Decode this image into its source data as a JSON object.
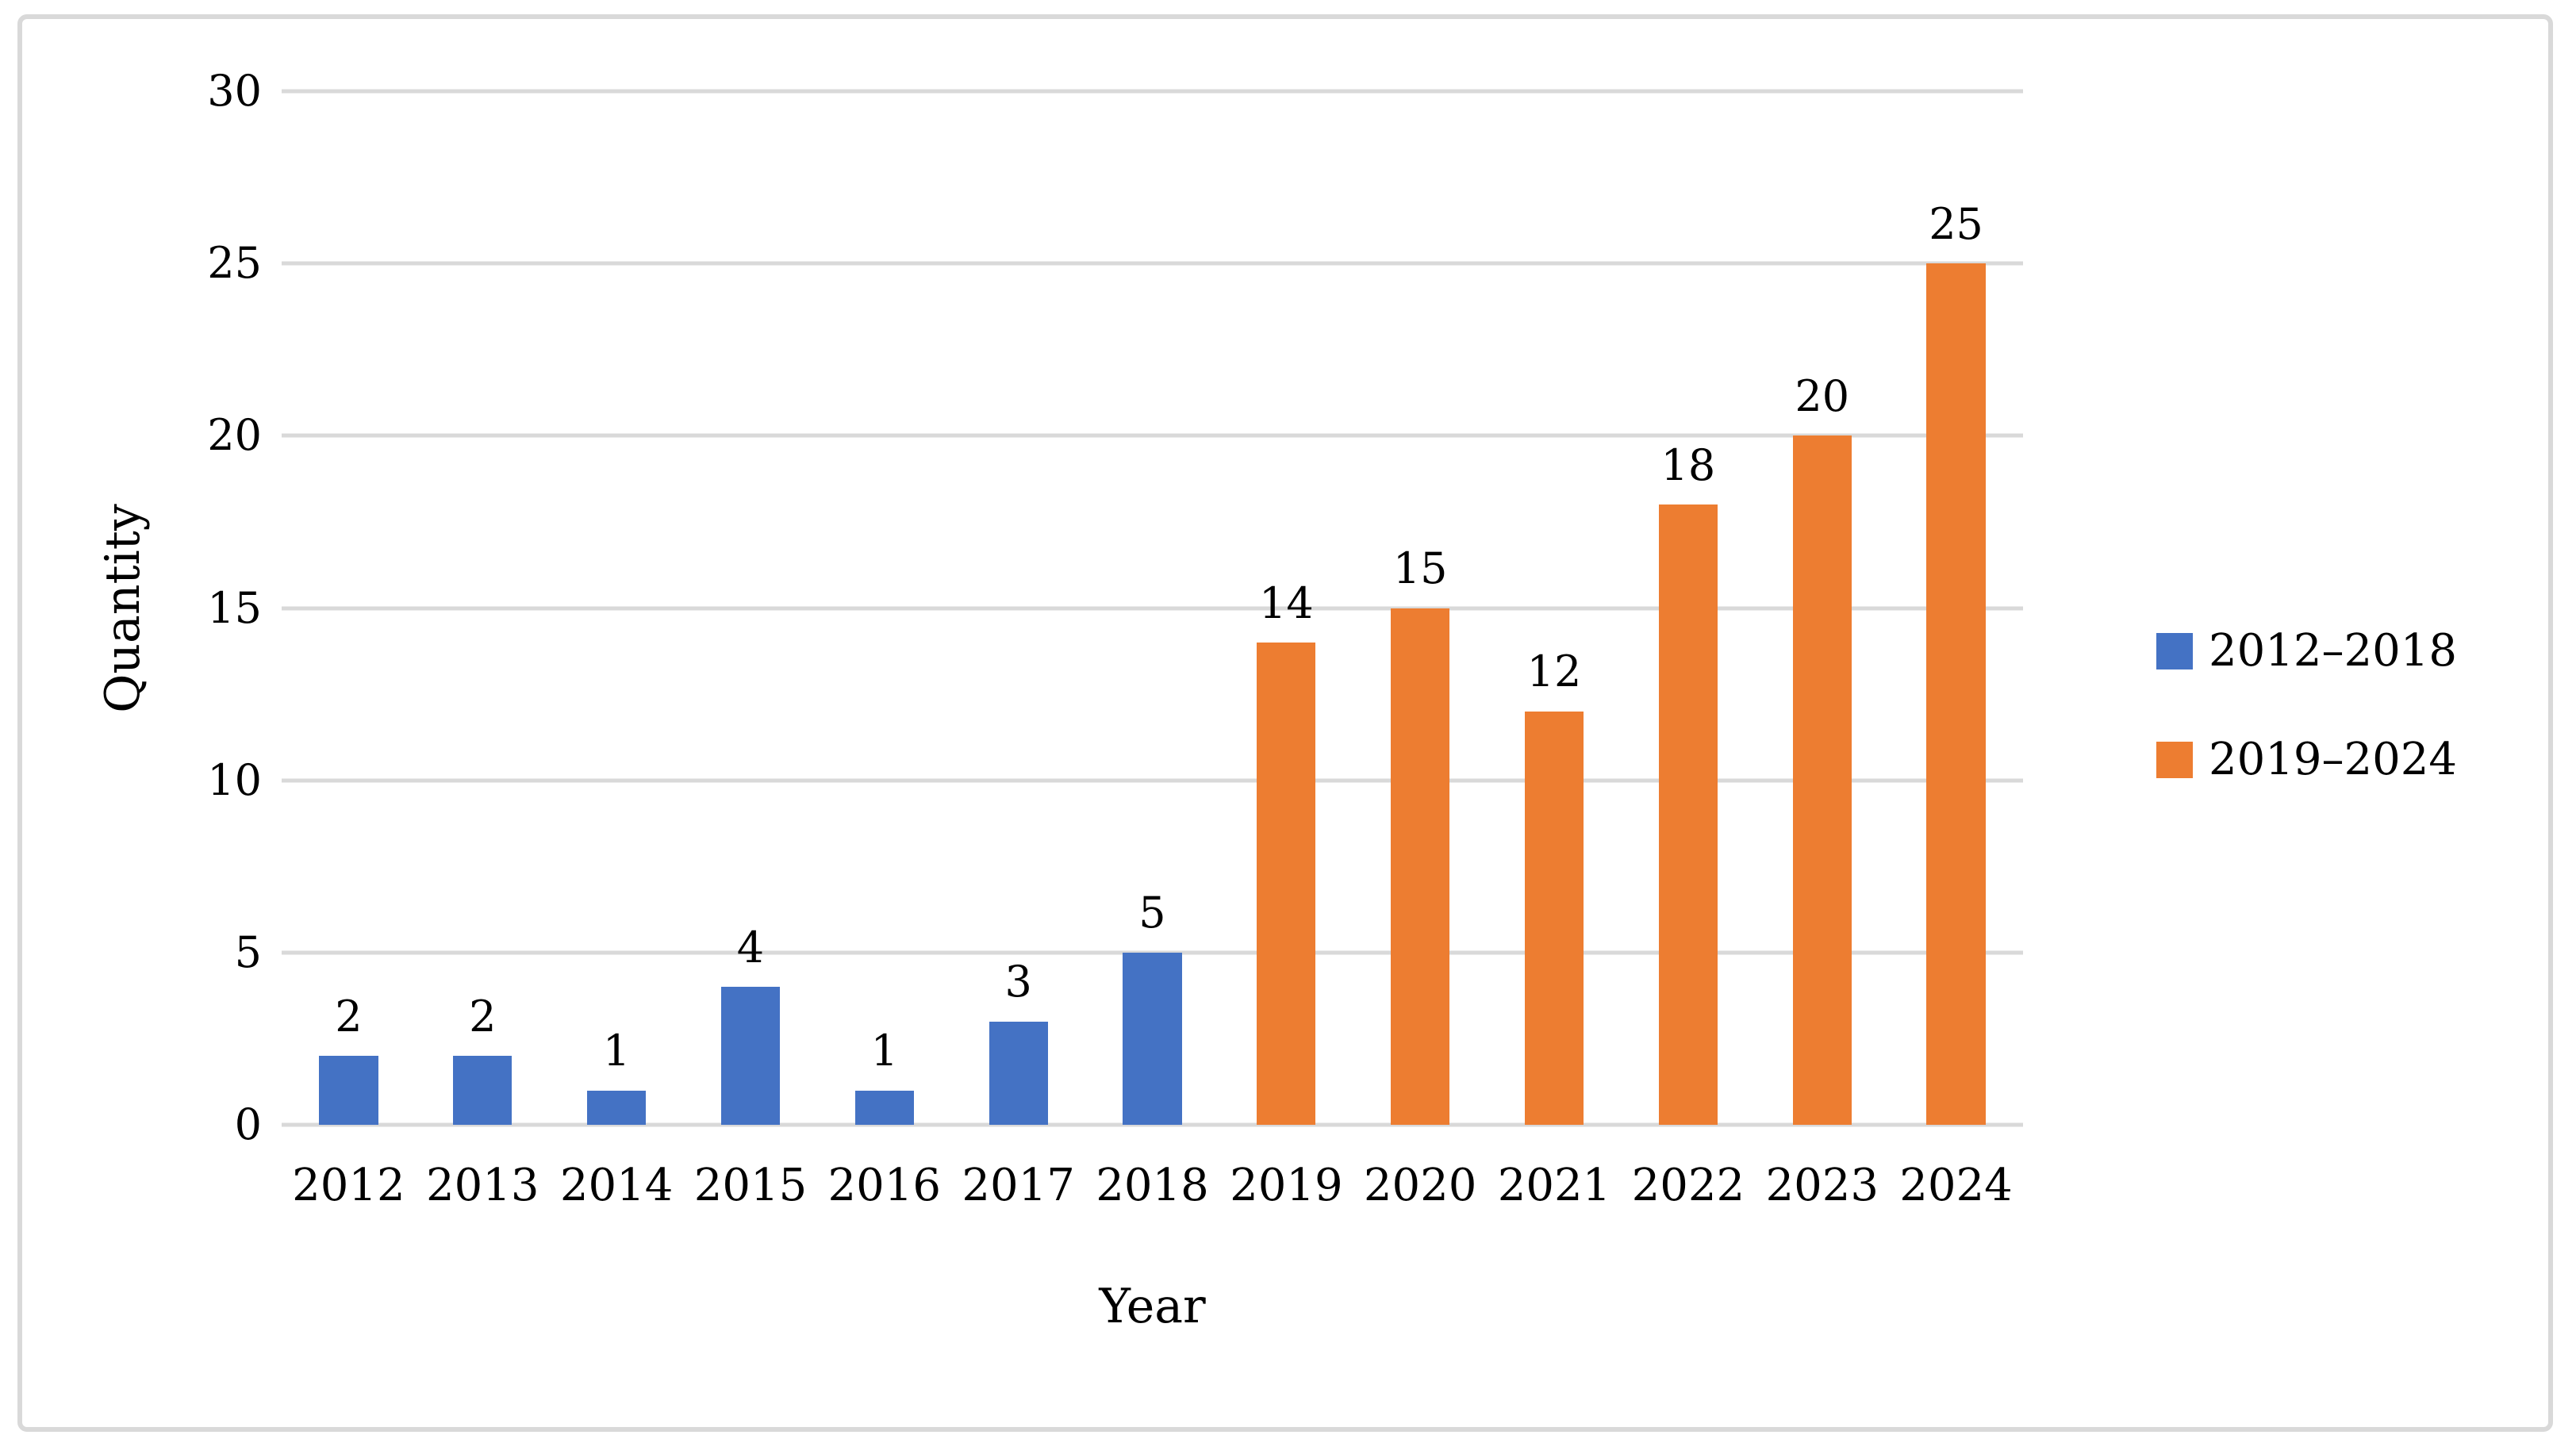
{
  "chart_data": {
    "type": "bar",
    "title": "",
    "xlabel": "Year",
    "ylabel": "Quantity",
    "ylim": [
      0,
      30
    ],
    "yticks": [
      0,
      5,
      10,
      15,
      20,
      25,
      30
    ],
    "grid": true,
    "legend_position": "right",
    "categories": [
      "2012",
      "2013",
      "2014",
      "2015",
      "2016",
      "2017",
      "2018",
      "2019",
      "2020",
      "2021",
      "2022",
      "2023",
      "2024"
    ],
    "series": [
      {
        "name": "2012–2018",
        "color": "#4472C4",
        "categories": [
          "2012",
          "2013",
          "2014",
          "2015",
          "2016",
          "2017",
          "2018"
        ],
        "values": [
          2,
          2,
          1,
          4,
          1,
          3,
          5
        ]
      },
      {
        "name": "2019–2024",
        "color": "#ED7D31",
        "categories": [
          "2019",
          "2020",
          "2021",
          "2022",
          "2023",
          "2024"
        ],
        "values": [
          14,
          15,
          12,
          18,
          20,
          25
        ]
      }
    ],
    "values": [
      2,
      2,
      1,
      4,
      1,
      3,
      5,
      14,
      15,
      12,
      18,
      20,
      25
    ],
    "data_labels_shown": true,
    "colors": {
      "gridline": "#D9D9D9",
      "frame_border": "#D9D9D9",
      "text": "#000000",
      "background": "#FFFFFF"
    }
  }
}
